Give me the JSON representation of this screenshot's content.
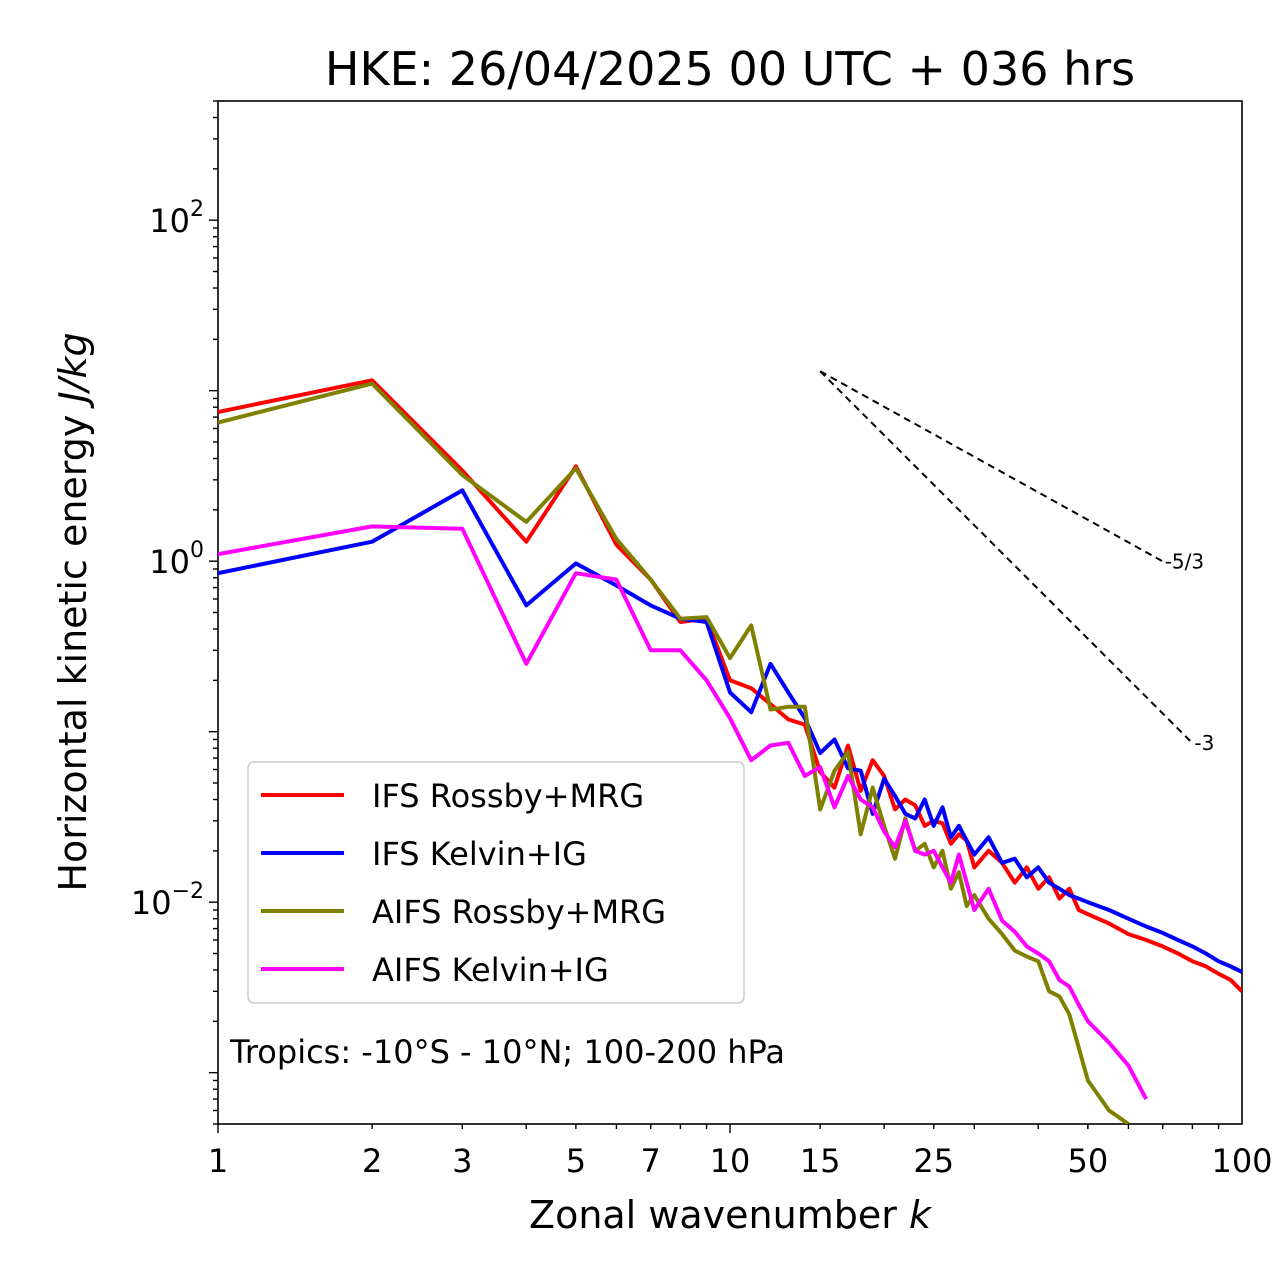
{
  "chart_data": {
    "type": "line",
    "title": "HKE: 26/04/2025 00 UTC + 036 hrs",
    "xlabel": "Zonal wavenumber",
    "xlabel_italic": "k",
    "ylabel": "Horizontal kinetic energy",
    "ylabel_italic": "J/kg",
    "xscale": "log",
    "yscale": "log",
    "xlim": [
      1,
      100
    ],
    "ylim": [
      0.0005,
      500
    ],
    "x_ticks": [
      1,
      2,
      3,
      5,
      7,
      10,
      15,
      25,
      50,
      100
    ],
    "x_tick_labels": [
      "1",
      "2",
      "3",
      "5",
      "7",
      "10",
      "15",
      "25",
      "50",
      "100"
    ],
    "y_ticks": [
      0.01,
      1,
      100
    ],
    "y_tick_bases": [
      "10",
      "10",
      "10"
    ],
    "y_tick_exponents": [
      "−2",
      "0",
      "2"
    ],
    "grid": false,
    "legend_position": "lower-left",
    "annotation": "Tropics: -10°S - 10°N; 100-200 hPa",
    "reference_slopes": [
      {
        "label": "-5/3",
        "slope": -1.6667,
        "x_start": 15,
        "x_end": 70,
        "y_start": 13
      },
      {
        "label": "-3",
        "slope": -3,
        "x_start": 15,
        "x_end": 80,
        "y_start": 13
      }
    ],
    "series": [
      {
        "name": "IFS Rossby+MRG",
        "color": "#ff0000",
        "x": [
          1,
          2,
          3,
          4,
          5,
          6,
          7,
          8,
          9,
          10,
          11,
          12,
          13,
          14,
          15,
          16,
          17,
          18,
          19,
          20,
          21,
          22,
          23,
          24,
          25,
          26,
          27,
          28,
          29,
          30,
          32,
          34,
          36,
          38,
          40,
          42,
          44,
          46,
          48,
          50,
          55,
          60,
          65,
          70,
          75,
          80,
          85,
          90,
          95,
          100
        ],
        "y": [
          7.5,
          11.5,
          3.4,
          1.3,
          3.6,
          1.25,
          0.78,
          0.44,
          0.46,
          0.2,
          0.18,
          0.145,
          0.118,
          0.11,
          0.058,
          0.047,
          0.083,
          0.045,
          0.068,
          0.055,
          0.035,
          0.04,
          0.037,
          0.028,
          0.03,
          0.029,
          0.022,
          0.025,
          0.023,
          0.016,
          0.02,
          0.017,
          0.013,
          0.016,
          0.012,
          0.014,
          0.0105,
          0.012,
          0.009,
          0.0085,
          0.0075,
          0.0065,
          0.006,
          0.0055,
          0.005,
          0.0045,
          0.0042,
          0.0038,
          0.0035,
          0.003
        ]
      },
      {
        "name": "IFS Kelvin+IG",
        "color": "#0000ff",
        "x": [
          1,
          2,
          3,
          4,
          5,
          6,
          7,
          8,
          9,
          10,
          11,
          12,
          13,
          14,
          15,
          16,
          17,
          18,
          19,
          20,
          21,
          22,
          23,
          24,
          25,
          26,
          27,
          28,
          29,
          30,
          32,
          34,
          36,
          38,
          40,
          42,
          44,
          46,
          48,
          50,
          55,
          60,
          65,
          70,
          75,
          80,
          85,
          90,
          95,
          100
        ],
        "y": [
          0.85,
          1.3,
          2.6,
          0.55,
          0.97,
          0.72,
          0.55,
          0.46,
          0.44,
          0.17,
          0.13,
          0.25,
          0.17,
          0.12,
          0.075,
          0.09,
          0.061,
          0.059,
          0.033,
          0.053,
          0.042,
          0.033,
          0.031,
          0.04,
          0.028,
          0.036,
          0.024,
          0.028,
          0.023,
          0.019,
          0.024,
          0.017,
          0.018,
          0.014,
          0.016,
          0.013,
          0.012,
          0.011,
          0.0105,
          0.01,
          0.009,
          0.008,
          0.0072,
          0.0066,
          0.006,
          0.0055,
          0.005,
          0.0045,
          0.0042,
          0.0039
        ]
      },
      {
        "name": "AIFS Rossby+MRG",
        "color": "#808000",
        "x": [
          1,
          2,
          3,
          4,
          5,
          6,
          7,
          8,
          9,
          10,
          11,
          12,
          13,
          14,
          15,
          16,
          17,
          18,
          19,
          20,
          21,
          22,
          23,
          24,
          25,
          26,
          27,
          28,
          29,
          30,
          32,
          34,
          36,
          38,
          40,
          42,
          44,
          46,
          48,
          50,
          55,
          60
        ],
        "y": [
          6.5,
          11.0,
          3.2,
          1.7,
          3.5,
          1.35,
          0.78,
          0.46,
          0.47,
          0.27,
          0.42,
          0.135,
          0.14,
          0.14,
          0.035,
          0.059,
          0.076,
          0.025,
          0.047,
          0.028,
          0.018,
          0.031,
          0.02,
          0.022,
          0.016,
          0.02,
          0.012,
          0.015,
          0.0095,
          0.011,
          0.008,
          0.0065,
          0.0052,
          0.0048,
          0.0045,
          0.003,
          0.0028,
          0.0022,
          0.0014,
          0.0009,
          0.0006,
          0.0005
        ]
      },
      {
        "name": "AIFS Kelvin+IG",
        "color": "#ff00ff",
        "x": [
          1,
          2,
          3,
          4,
          5,
          6,
          7,
          8,
          9,
          10,
          11,
          12,
          13,
          14,
          15,
          16,
          17,
          18,
          19,
          20,
          21,
          22,
          23,
          24,
          25,
          26,
          27,
          28,
          29,
          30,
          32,
          34,
          36,
          38,
          40,
          42,
          44,
          46,
          48,
          50,
          55,
          60,
          65
        ],
        "y": [
          1.1,
          1.6,
          1.55,
          0.25,
          0.85,
          0.78,
          0.3,
          0.3,
          0.2,
          0.12,
          0.068,
          0.083,
          0.086,
          0.055,
          0.062,
          0.036,
          0.055,
          0.04,
          0.036,
          0.026,
          0.021,
          0.03,
          0.02,
          0.019,
          0.02,
          0.016,
          0.013,
          0.019,
          0.013,
          0.009,
          0.012,
          0.0078,
          0.0067,
          0.0055,
          0.005,
          0.0045,
          0.0035,
          0.0032,
          0.0025,
          0.002,
          0.0015,
          0.0011,
          0.0007
        ]
      }
    ]
  }
}
